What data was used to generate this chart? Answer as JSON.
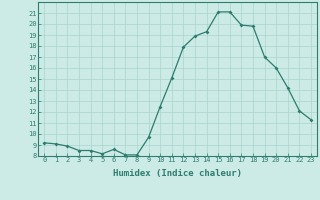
{
  "x": [
    0,
    1,
    2,
    3,
    4,
    5,
    6,
    7,
    8,
    9,
    10,
    11,
    12,
    13,
    14,
    15,
    16,
    17,
    18,
    19,
    20,
    21,
    22,
    23
  ],
  "y": [
    9.2,
    9.1,
    8.9,
    8.5,
    8.5,
    8.2,
    8.6,
    8.1,
    8.1,
    9.7,
    12.5,
    15.1,
    17.9,
    18.9,
    19.3,
    21.1,
    21.1,
    19.9,
    19.8,
    17.0,
    16.0,
    14.2,
    12.1,
    11.3
  ],
  "line_color": "#2e7d6e",
  "marker": "D",
  "marker_size": 2.0,
  "bg_color": "#cceae6",
  "grid_color": "#aad4cf",
  "xlabel": "Humidex (Indice chaleur)",
  "ylim": [
    8,
    22
  ],
  "xlim": [
    -0.5,
    23.5
  ],
  "yticks": [
    8,
    9,
    10,
    11,
    12,
    13,
    14,
    15,
    16,
    17,
    18,
    19,
    20,
    21
  ],
  "xticks": [
    0,
    1,
    2,
    3,
    4,
    5,
    6,
    7,
    8,
    9,
    10,
    11,
    12,
    13,
    14,
    15,
    16,
    17,
    18,
    19,
    20,
    21,
    22,
    23
  ],
  "tick_color": "#2e7d6e",
  "label_color": "#2e7d6e",
  "tick_fontsize": 5.0,
  "xlabel_fontsize": 6.5
}
